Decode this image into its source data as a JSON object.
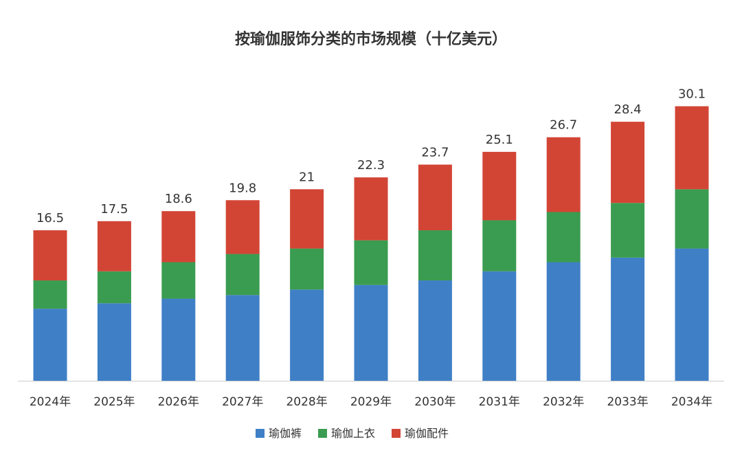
{
  "chart_data": {
    "type": "bar",
    "stacked": true,
    "title": "按瑜伽服饰分类的市场规模（十亿美元）",
    "xlabel": "",
    "ylabel": "",
    "ylim": [
      0,
      33
    ],
    "grid": false,
    "legend_position": "bottom",
    "categories": [
      "2024年",
      "2025年",
      "2026年",
      "2027年",
      "2028年",
      "2029年",
      "2030年",
      "2031年",
      "2032年",
      "2033年",
      "2034年"
    ],
    "series": [
      {
        "name": "瑜伽裤",
        "color": "#3f7fc6",
        "values": [
          7.9,
          8.5,
          9.0,
          9.4,
          10.0,
          10.5,
          11.0,
          12.0,
          13.0,
          13.5,
          14.5
        ]
      },
      {
        "name": "瑜伽上衣",
        "color": "#3a9c50",
        "values": [
          3.1,
          3.5,
          4.0,
          4.5,
          4.5,
          4.9,
          5.5,
          5.6,
          5.5,
          6.0,
          6.5
        ]
      },
      {
        "name": "瑜伽配件",
        "color": "#d24535",
        "values": [
          5.5,
          5.5,
          5.6,
          5.9,
          6.5,
          6.9,
          7.2,
          7.5,
          8.2,
          8.9,
          9.1
        ]
      }
    ],
    "totals": [
      "16.5",
      "17.5",
      "18.6",
      "19.8",
      "21",
      "22.3",
      "23.7",
      "25.1",
      "26.7",
      "28.4",
      "30.1"
    ]
  }
}
